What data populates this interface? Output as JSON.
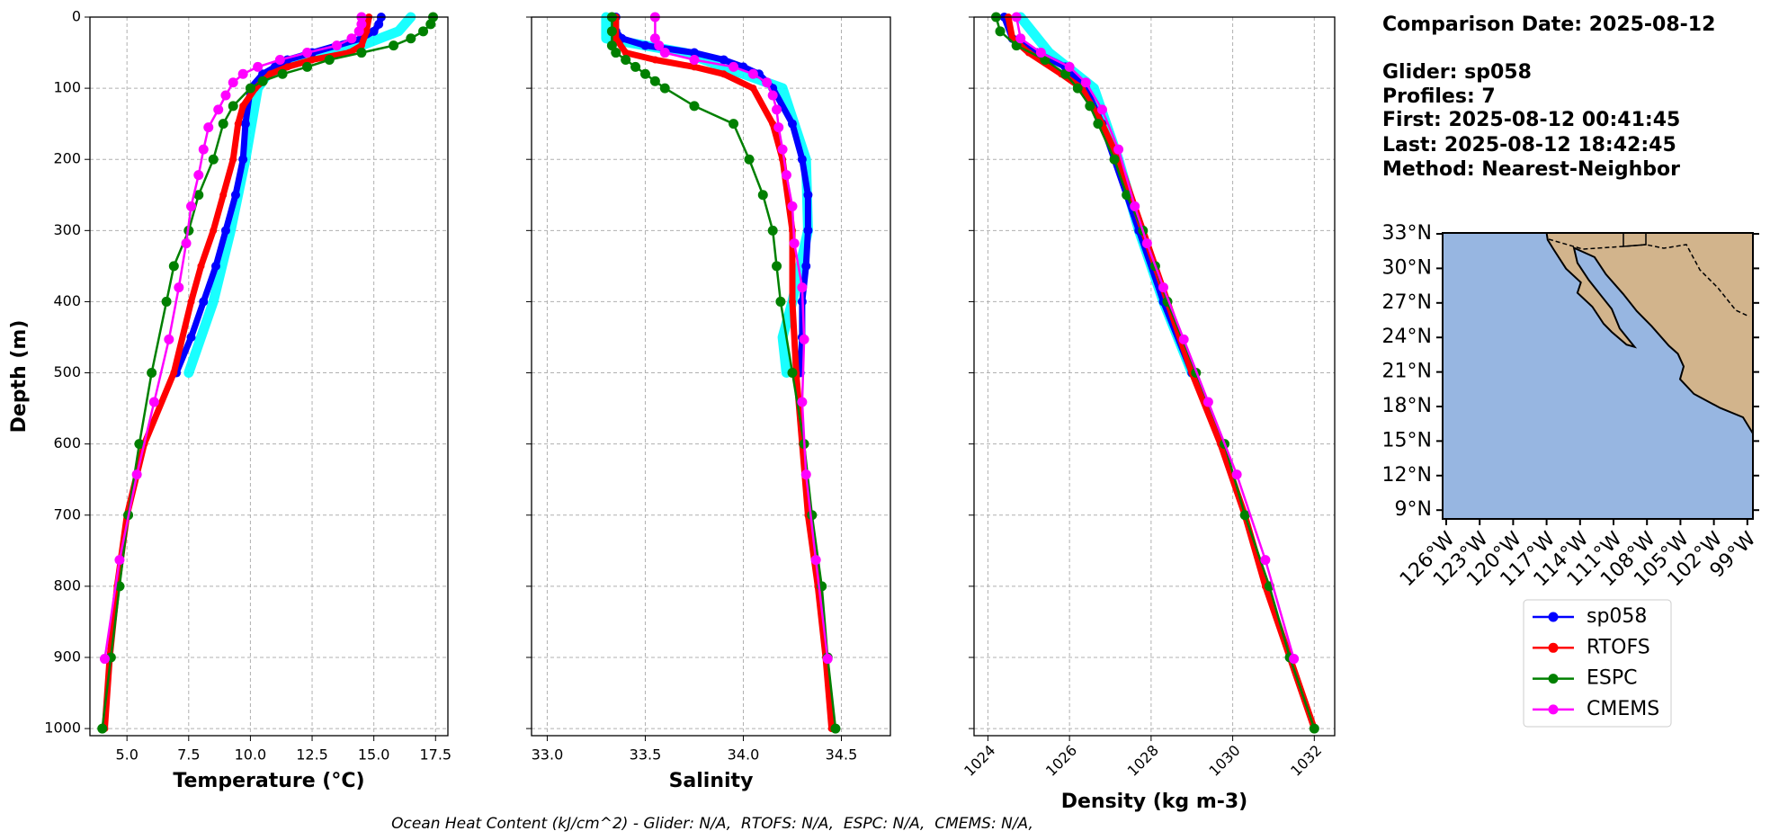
{
  "chart_data": [
    {
      "type": "line",
      "xlabel": "Temperature (°C)",
      "ylabel": "Depth (m)",
      "xlim": [
        3.5,
        18.0
      ],
      "xticks": [
        {
          "value": 5,
          "label": "5.0"
        },
        {
          "value": 7.5,
          "label": "7.5"
        },
        {
          "value": 10,
          "label": "10.0"
        },
        {
          "value": 12.5,
          "label": "12.5"
        },
        {
          "value": 15,
          "label": "15.0"
        },
        {
          "value": 17.5,
          "label": "17.5"
        }
      ],
      "ylim": [
        1010,
        0
      ],
      "yticks": [
        0,
        100,
        200,
        300,
        400,
        500,
        600,
        700,
        800,
        900,
        1000
      ],
      "grid": true,
      "ytick_labels": true,
      "series": [
        {
          "color": "#00ffff",
          "depth": [
            0,
            20,
            40,
            60,
            80,
            100,
            200,
            300,
            400,
            500
          ],
          "values": [
            16.5,
            16.0,
            14.5,
            12.0,
            10.7,
            10.3,
            9.8,
            9.2,
            8.5,
            7.5
          ]
        },
        {
          "name": "sp058",
          "color": "#0000ff",
          "markers": true,
          "depth": [
            0,
            10,
            20,
            30,
            40,
            50,
            60,
            70,
            80,
            100,
            150,
            200,
            250,
            300,
            350,
            400,
            450,
            500
          ],
          "values": [
            15.3,
            15.2,
            15.0,
            14.5,
            13.5,
            12.5,
            11.5,
            11.0,
            10.5,
            10.0,
            9.8,
            9.7,
            9.4,
            9.0,
            8.6,
            8.1,
            7.6,
            7.0
          ]
        },
        {
          "name": "RTOFS",
          "color": "#ff0000",
          "markers": true,
          "depth": [
            0,
            20,
            40,
            50,
            60,
            70,
            80,
            100,
            125,
            150,
            200,
            250,
            300,
            350,
            400,
            500,
            600,
            700,
            800,
            900,
            1000
          ],
          "values": [
            14.8,
            14.7,
            14.5,
            14.0,
            12.5,
            11.5,
            10.8,
            10.2,
            9.7,
            9.5,
            9.3,
            8.9,
            8.5,
            8.0,
            7.6,
            6.9,
            5.7,
            5.0,
            4.6,
            4.3,
            4.1
          ]
        },
        {
          "name": "ESPC",
          "color": "#008000",
          "markers": true,
          "depth": [
            0,
            10,
            20,
            30,
            40,
            50,
            60,
            70,
            80,
            90,
            100,
            125,
            150,
            200,
            250,
            300,
            350,
            400,
            500,
            600,
            700,
            800,
            900,
            1000
          ],
          "values": [
            17.4,
            17.3,
            17.0,
            16.5,
            15.8,
            14.5,
            13.2,
            12.3,
            11.3,
            10.5,
            10.0,
            9.3,
            8.9,
            8.5,
            7.9,
            7.5,
            6.9,
            6.6,
            6.0,
            5.5,
            5.05,
            4.7,
            4.35,
            4.0
          ]
        },
        {
          "name": "CMEMS",
          "color": "#ff00ff",
          "markers": true,
          "depth": [
            0,
            10,
            20,
            30,
            40,
            50,
            60,
            70,
            80,
            92,
            110,
            130,
            155,
            186,
            222,
            266,
            318,
            380,
            453,
            541,
            643,
            763,
            902
          ],
          "values": [
            14.5,
            14.5,
            14.4,
            14.1,
            13.5,
            12.3,
            11.2,
            10.3,
            9.7,
            9.3,
            9.0,
            8.7,
            8.3,
            8.1,
            7.9,
            7.6,
            7.4,
            7.1,
            6.7,
            6.1,
            5.4,
            4.7,
            4.1
          ]
        }
      ]
    },
    {
      "type": "line",
      "xlabel": "Salinity",
      "xlim": [
        32.92,
        34.75
      ],
      "xticks": [
        {
          "value": 33,
          "label": "33.0"
        },
        33.5,
        {
          "value": 34,
          "label": "34.0"
        },
        34.5
      ],
      "ylim": [
        1010,
        0
      ],
      "yticks": [
        0,
        100,
        200,
        300,
        400,
        500,
        600,
        700,
        800,
        900,
        1000
      ],
      "grid": true,
      "ytick_labels": false,
      "series": [
        {
          "color": "#00ffff",
          "depth": [
            0,
            30,
            50,
            100,
            200,
            300,
            400,
            450,
            500
          ],
          "values": [
            33.3,
            33.3,
            33.7,
            34.2,
            34.32,
            34.33,
            34.25,
            34.2,
            34.22
          ]
        },
        {
          "color": "#0000ff",
          "markers": true,
          "depth": [
            0,
            20,
            30,
            40,
            50,
            60,
            70,
            80,
            100,
            150,
            200,
            250,
            300,
            350,
            400,
            450,
            500
          ],
          "values": [
            33.35,
            33.35,
            33.38,
            33.5,
            33.75,
            33.9,
            34.0,
            34.08,
            34.15,
            34.25,
            34.3,
            34.33,
            34.33,
            34.32,
            34.3,
            34.3,
            34.29
          ]
        },
        {
          "color": "#ff0000",
          "markers": true,
          "depth": [
            0,
            30,
            50,
            60,
            70,
            80,
            100,
            150,
            200,
            300,
            400,
            500,
            600,
            700,
            800,
            900,
            1000
          ],
          "values": [
            33.35,
            33.35,
            33.4,
            33.55,
            33.75,
            33.9,
            34.05,
            34.15,
            34.2,
            34.25,
            34.25,
            34.27,
            34.3,
            34.33,
            34.38,
            34.42,
            34.45
          ]
        },
        {
          "color": "#008000",
          "markers": true,
          "depth": [
            0,
            20,
            40,
            50,
            60,
            70,
            80,
            90,
            100,
            125,
            150,
            200,
            250,
            300,
            350,
            400,
            500,
            600,
            700,
            800,
            900,
            1000
          ],
          "values": [
            33.33,
            33.33,
            33.33,
            33.35,
            33.4,
            33.45,
            33.5,
            33.55,
            33.6,
            33.75,
            33.95,
            34.03,
            34.1,
            34.15,
            34.17,
            34.19,
            34.25,
            34.31,
            34.35,
            34.4,
            34.43,
            34.47
          ]
        },
        {
          "color": "#ff00ff",
          "markers": true,
          "depth": [
            0,
            30,
            40,
            50,
            60,
            70,
            80,
            92,
            110,
            130,
            155,
            186,
            222,
            266,
            318,
            380,
            453,
            541,
            643,
            763,
            902
          ],
          "values": [
            33.55,
            33.55,
            33.57,
            33.6,
            33.75,
            33.95,
            34.05,
            34.12,
            34.15,
            34.17,
            34.18,
            34.2,
            34.22,
            34.25,
            34.26,
            34.3,
            34.31,
            34.3,
            34.32,
            34.37,
            34.43
          ]
        }
      ]
    },
    {
      "type": "line",
      "xlabel": "Density (kg m-3)",
      "xtick_rotation": 45,
      "xlim": [
        1023.66,
        1032.5
      ],
      "xticks": [
        1024,
        1026,
        1028,
        1030,
        1032
      ],
      "ylim": [
        1010,
        0
      ],
      "yticks": [
        0,
        100,
        200,
        300,
        400,
        500,
        600,
        700,
        800,
        900,
        1000
      ],
      "grid": true,
      "ytick_labels": false,
      "series": [
        {
          "color": "#00ffff",
          "depth": [
            0,
            50,
            100,
            200,
            300,
            400,
            500
          ],
          "values": [
            1024.8,
            1025.5,
            1026.6,
            1027.2,
            1027.7,
            1028.3,
            1029.0
          ]
        },
        {
          "color": "#0000ff",
          "markers": true,
          "depth": [
            0,
            30,
            50,
            70,
            100,
            150,
            200,
            250,
            300,
            400,
            500
          ],
          "values": [
            1024.4,
            1024.6,
            1025.2,
            1025.9,
            1026.4,
            1026.8,
            1027.1,
            1027.4,
            1027.7,
            1028.3,
            1029.0
          ]
        },
        {
          "color": "#ff0000",
          "markers": true,
          "depth": [
            0,
            30,
            50,
            80,
            100,
            150,
            200,
            300,
            400,
            500,
            600,
            700,
            800,
            900,
            1000
          ],
          "values": [
            1024.5,
            1024.6,
            1025.0,
            1025.8,
            1026.3,
            1026.8,
            1027.2,
            1027.8,
            1028.4,
            1029.0,
            1029.7,
            1030.3,
            1030.8,
            1031.4,
            1032.0
          ]
        },
        {
          "color": "#008000",
          "markers": true,
          "depth": [
            0,
            20,
            40,
            60,
            80,
            100,
            125,
            150,
            200,
            250,
            300,
            350,
            400,
            500,
            600,
            700,
            800,
            900,
            1000
          ],
          "values": [
            1024.2,
            1024.3,
            1024.7,
            1025.4,
            1025.9,
            1026.2,
            1026.5,
            1026.7,
            1027.1,
            1027.4,
            1027.8,
            1028.1,
            1028.4,
            1029.1,
            1029.8,
            1030.3,
            1030.9,
            1031.4,
            1032.0
          ]
        },
        {
          "color": "#ff00ff",
          "markers": true,
          "depth": [
            0,
            30,
            50,
            70,
            92,
            130,
            186,
            266,
            318,
            380,
            453,
            541,
            643,
            763,
            902
          ],
          "values": [
            1024.7,
            1024.8,
            1025.3,
            1026.0,
            1026.4,
            1026.8,
            1027.2,
            1027.6,
            1027.9,
            1028.3,
            1028.8,
            1029.4,
            1030.1,
            1030.8,
            1031.5
          ]
        }
      ]
    }
  ],
  "info": [
    "Comparison Date: 2025-08-12",
    "Glider: sp058",
    "Profiles: 7",
    "First: 2025-08-12 00:41:45",
    "Last: 2025-08-12 18:42:45",
    "Method: Nearest-Neighbor"
  ],
  "map": {
    "lat_labels": [
      "33°N",
      "30°N",
      "27°N",
      "24°N",
      "21°N",
      "18°N",
      "15°N",
      "12°N",
      "9°N"
    ],
    "lon_labels": [
      "126°W",
      "123°W",
      "120°W",
      "117°W",
      "114°W",
      "111°W",
      "108°W",
      "105°W",
      "102°W",
      "99°W"
    ]
  },
  "footer": "Ocean Heat Content (kJ/cm^2) - Glider: N/A,  RTOFS: N/A,  ESPC: N/A,  CMEMS: N/A,"
}
